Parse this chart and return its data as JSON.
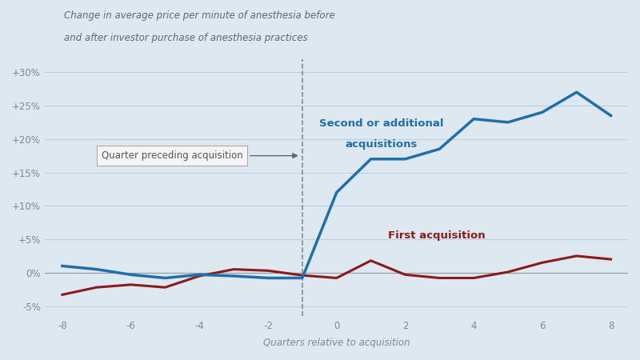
{
  "background_color": "#dde8f0",
  "plot_bg_color": "#dde8f0",
  "title_line1": "Change in average price per minute of anesthesia before",
  "title_line2": "and after investor purchase of anesthesia practices",
  "xlabel": "Quarters relative to acquisition",
  "xlim": [
    -8.5,
    8.5
  ],
  "ylim": [
    -0.065,
    0.32
  ],
  "xticks": [
    -8,
    -6,
    -4,
    -2,
    0,
    2,
    4,
    6,
    8
  ],
  "yticks": [
    -0.05,
    0.0,
    0.05,
    0.1,
    0.15,
    0.2,
    0.25,
    0.3
  ],
  "ytick_labels": [
    "-5%",
    "0%",
    "+5%",
    "+10%",
    "+15%",
    "+20%",
    "+25%",
    "+30%"
  ],
  "blue_color": "#1f6fad",
  "red_color": "#8b1a1a",
  "grid_color": "#c0d0db",
  "annotation_box_color": "#f5f5f5",
  "annotation_text": "Quarter preceding acquisition",
  "dashed_line_x": -1,
  "blue_label_line1": "Second or additional",
  "blue_label_line2": "acquisitions",
  "red_label": "First acquisition",
  "blue_x": [
    -8,
    -7,
    -6,
    -5,
    -4,
    -3,
    -2,
    -1,
    0,
    1,
    2,
    3,
    4,
    5,
    6,
    7,
    8
  ],
  "blue_y": [
    0.01,
    0.005,
    -0.003,
    -0.008,
    -0.003,
    -0.005,
    -0.008,
    -0.008,
    0.12,
    0.17,
    0.17,
    0.185,
    0.23,
    0.225,
    0.24,
    0.27,
    0.235
  ],
  "red_x": [
    -8,
    -7,
    -6,
    -5,
    -4,
    -3,
    -2,
    -1,
    0,
    1,
    2,
    3,
    4,
    5,
    6,
    7,
    8
  ],
  "red_y": [
    -0.033,
    -0.022,
    -0.018,
    -0.022,
    -0.005,
    0.005,
    0.003,
    -0.004,
    -0.008,
    0.018,
    -0.003,
    -0.008,
    -0.008,
    0.001,
    0.015,
    0.025,
    0.02
  ]
}
